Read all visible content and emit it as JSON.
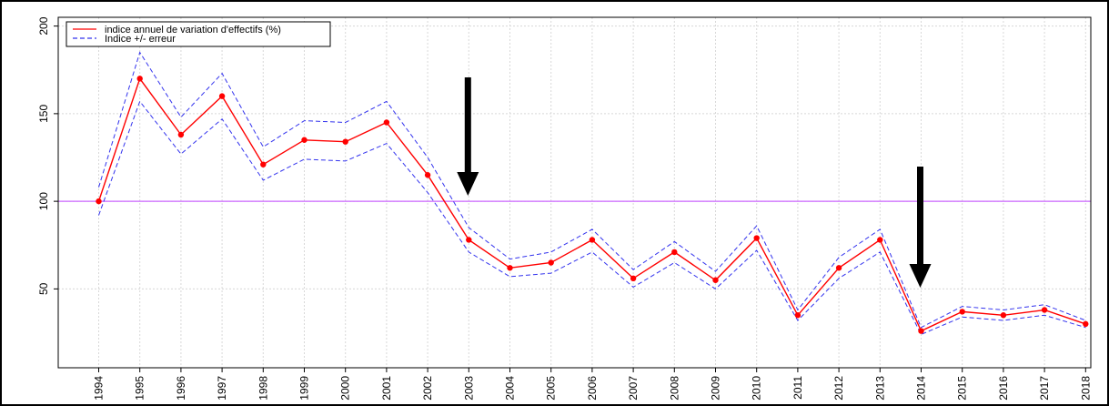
{
  "chart_data": {
    "type": "line",
    "title": "",
    "xlabel": "",
    "ylabel": "",
    "x": [
      "1994",
      "1995",
      "1996",
      "1997",
      "1998",
      "1999",
      "2000",
      "2001",
      "2002",
      "2003",
      "2004",
      "2005",
      "2006",
      "2007",
      "2008",
      "2009",
      "2010",
      "2011",
      "2012",
      "2013",
      "2014",
      "2015",
      "2016",
      "2017",
      "2018"
    ],
    "series": [
      {
        "name": "indice annuel de variation d'effectifs (%)",
        "color": "#ff0000",
        "style": "solid",
        "markers": true,
        "values": [
          100,
          170,
          138,
          160,
          121,
          135,
          134,
          145,
          115,
          78,
          62,
          65,
          78,
          56,
          71,
          55,
          79,
          35,
          62,
          78,
          26,
          37,
          35,
          38,
          30
        ]
      },
      {
        "name": "Indice +/- erreur",
        "color": "#3333ee",
        "style": "dashed",
        "markers": false,
        "values": [
          108,
          185,
          148,
          173,
          131,
          146,
          145,
          157,
          125,
          85,
          67,
          71,
          84,
          61,
          77,
          60,
          86,
          38,
          68,
          84,
          28,
          40,
          38,
          41,
          32
        ]
      },
      {
        "name": "Indice +/- erreur",
        "color": "#3333ee",
        "style": "dashed",
        "markers": false,
        "legend": false,
        "values": [
          92,
          157,
          127,
          147,
          112,
          124,
          123,
          133,
          105,
          71,
          57,
          59,
          71,
          51,
          65,
          50,
          72,
          32,
          56,
          71,
          24,
          34,
          32,
          35,
          28
        ]
      }
    ],
    "reference_line": {
      "y": 100,
      "color": "#cc66ff"
    },
    "ylim": [
      5,
      205
    ],
    "yticks": [
      "50",
      "100",
      "150",
      "200"
    ],
    "grid": true,
    "legend_position": "top-left",
    "annotations": [
      {
        "type": "arrow",
        "direction": "down",
        "at_x": "2003"
      },
      {
        "type": "arrow",
        "direction": "down",
        "at_x": "2014"
      }
    ]
  }
}
